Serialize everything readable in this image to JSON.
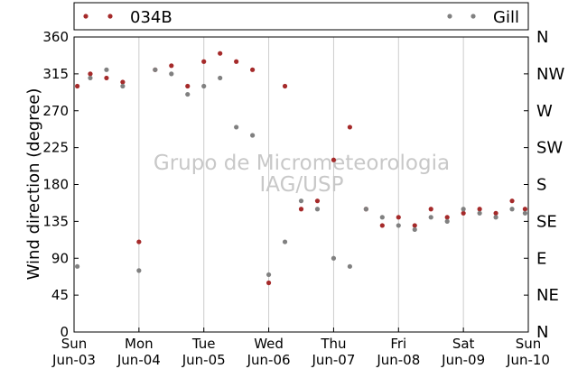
{
  "chart_data": {
    "type": "scatter",
    "title": "",
    "xlabel": "",
    "ylabel": "Wind direction (degree)",
    "ylim": [
      0,
      360
    ],
    "yticks": [
      0,
      45,
      90,
      135,
      180,
      225,
      270,
      315,
      360
    ],
    "y2_ticks": [
      {
        "value": 360,
        "label": "N"
      },
      {
        "value": 315,
        "label": "NW"
      },
      {
        "value": 270,
        "label": "W"
      },
      {
        "value": 225,
        "label": "SW"
      },
      {
        "value": 180,
        "label": "S"
      },
      {
        "value": 135,
        "label": "SE"
      },
      {
        "value": 90,
        "label": "E"
      },
      {
        "value": 45,
        "label": "NE"
      },
      {
        "value": 0,
        "label": "N"
      }
    ],
    "xlim": [
      "Jun-03",
      "Jun-10"
    ],
    "xticks": [
      {
        "day": "Sun",
        "date": "Jun-03"
      },
      {
        "day": "Mon",
        "date": "Jun-04"
      },
      {
        "day": "Tue",
        "date": "Jun-05"
      },
      {
        "day": "Wed",
        "date": "Jun-06"
      },
      {
        "day": "Thu",
        "date": "Jun-07"
      },
      {
        "day": "Fri",
        "date": "Jun-08"
      },
      {
        "day": "Sat",
        "date": "Jun-09"
      },
      {
        "day": "Sun",
        "date": "Jun-10"
      }
    ],
    "grid": "vertical",
    "legend_position": "top",
    "watermark": [
      "Grupo de Micrometeorologia",
      "IAG/USP"
    ],
    "series": [
      {
        "name": "034B",
        "color": "#a52a2a",
        "x_days": [
          0.05,
          0.25,
          0.5,
          0.75,
          1.0,
          1.25,
          1.5,
          1.75,
          2.0,
          2.25,
          2.5,
          2.75,
          3.0,
          3.25,
          3.5,
          3.75,
          4.0,
          4.25,
          4.5,
          4.75,
          5.0,
          5.25,
          5.5,
          5.75,
          6.0,
          6.25,
          6.5,
          6.75,
          6.95
        ],
        "y": [
          300,
          315,
          310,
          305,
          110,
          320,
          325,
          300,
          330,
          340,
          330,
          320,
          60,
          300,
          150,
          160,
          210,
          250,
          150,
          130,
          140,
          130,
          150,
          140,
          145,
          150,
          145,
          160,
          150
        ]
      },
      {
        "name": "Gill",
        "color": "#808080",
        "x_days": [
          0.05,
          0.25,
          0.5,
          0.75,
          1.0,
          1.25,
          1.5,
          1.75,
          2.0,
          2.25,
          2.5,
          2.75,
          3.0,
          3.25,
          3.5,
          3.75,
          4.0,
          4.25,
          4.5,
          4.75,
          5.0,
          5.25,
          5.5,
          5.75,
          6.0,
          6.25,
          6.5,
          6.75,
          6.95
        ],
        "y": [
          80,
          310,
          320,
          300,
          75,
          320,
          315,
          290,
          300,
          310,
          250,
          240,
          70,
          110,
          160,
          150,
          90,
          80,
          150,
          140,
          130,
          125,
          140,
          135,
          150,
          145,
          140,
          150,
          145
        ]
      }
    ]
  }
}
